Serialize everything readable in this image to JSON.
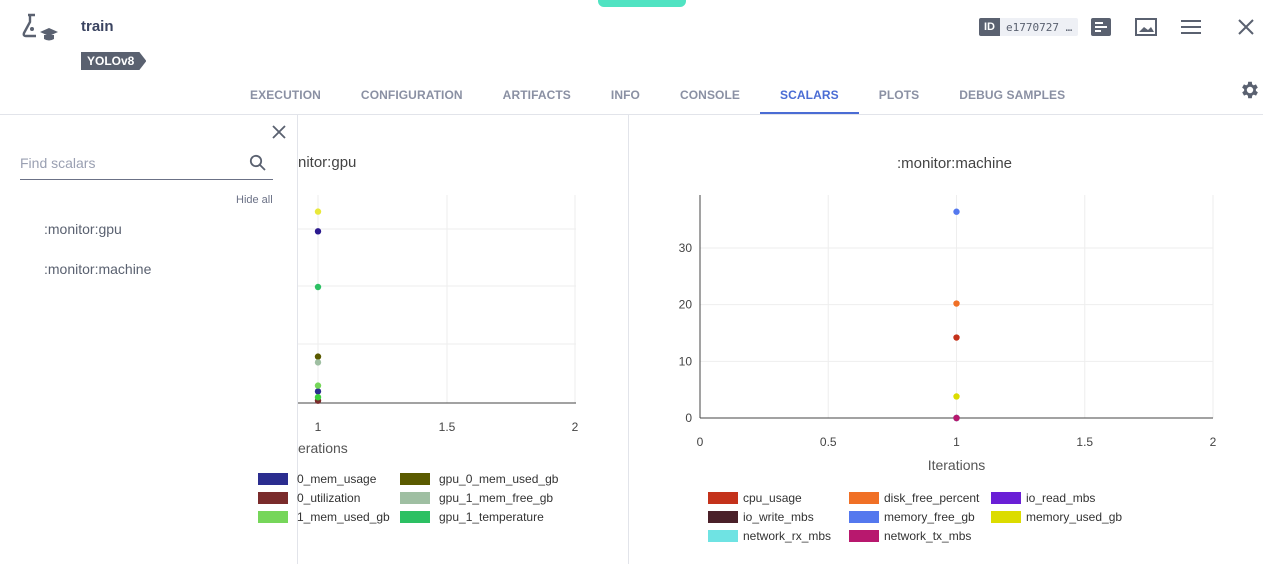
{
  "header": {
    "task_name": "train",
    "tag": "YOLOv8",
    "id_label": "ID",
    "id_value": "e1770727 …",
    "icons": [
      "flask-icon",
      "info-panel-icon",
      "image-view-icon",
      "menu-icon",
      "close-icon"
    ]
  },
  "tabs": [
    {
      "label": "EXECUTION",
      "active": false
    },
    {
      "label": "CONFIGURATION",
      "active": false
    },
    {
      "label": "ARTIFACTS",
      "active": false
    },
    {
      "label": "INFO",
      "active": false
    },
    {
      "label": "CONSOLE",
      "active": false
    },
    {
      "label": "SCALARS",
      "active": true
    },
    {
      "label": "PLOTS",
      "active": false
    },
    {
      "label": "DEBUG SAMPLES",
      "active": false
    }
  ],
  "sidebar": {
    "search_placeholder": "Find scalars",
    "hide_all": "Hide all",
    "items": [
      ":monitor:gpu",
      ":monitor:machine"
    ]
  },
  "colors": {
    "accent": "#4a6cd4",
    "top_accent": "#50e3c2"
  },
  "chart_data": [
    {
      "type": "scatter",
      "title": "nitor:gpu",
      "xlabel": "erations",
      "x_ticks": [
        "1",
        "1.5",
        "2"
      ],
      "grid": true,
      "series": [
        {
          "name": "0_mem_usage",
          "x": [
            1
          ],
          "y": [
            1.0
          ],
          "color": "#2b2d8f"
        },
        {
          "name": "gpu_0_mem_used_gb",
          "x": [
            1
          ],
          "y": [
            4.0
          ],
          "color": "#5a5a00"
        },
        {
          "name": "0_utilization",
          "x": [
            1
          ],
          "y": [
            0.2
          ],
          "color": "#7a2b2b"
        },
        {
          "name": "gpu_1_mem_free_gb",
          "x": [
            1
          ],
          "y": [
            3.5
          ],
          "color": "#9fbfa2"
        },
        {
          "name": "1_mem_used_gb",
          "x": [
            1
          ],
          "y": [
            1.5
          ],
          "color": "#76d65a"
        },
        {
          "name": "gpu_1_temperature",
          "x": [
            1
          ],
          "y": [
            10.0
          ],
          "color": "#2cc063"
        }
      ],
      "extra_points": [
        {
          "y": 16.5,
          "color": "#e8e83a"
        },
        {
          "y": 14.8,
          "color": "#2b1a8f"
        },
        {
          "y": 0.5,
          "color": "#3ccf3c"
        }
      ]
    },
    {
      "type": "scatter",
      "title": ":monitor:machine",
      "xlabel": "Iterations",
      "ylabel": "",
      "xlim": [
        0,
        2
      ],
      "ylim": [
        0,
        39
      ],
      "x_ticks": [
        "0",
        "0.5",
        "1",
        "1.5",
        "2"
      ],
      "y_ticks": [
        "0",
        "10",
        "20",
        "30"
      ],
      "grid": true,
      "series": [
        {
          "name": "cpu_usage",
          "x": [
            1
          ],
          "y": [
            14.2
          ],
          "color": "#c4321b"
        },
        {
          "name": "disk_free_percent",
          "x": [
            1
          ],
          "y": [
            20.2
          ],
          "color": "#f07026"
        },
        {
          "name": "io_read_mbs",
          "x": [
            1
          ],
          "y": [
            0
          ],
          "color": "#6a1fd6"
        },
        {
          "name": "io_write_mbs",
          "x": [
            1
          ],
          "y": [
            0
          ],
          "color": "#4a2029"
        },
        {
          "name": "memory_free_gb",
          "x": [
            1
          ],
          "y": [
            36.4
          ],
          "color": "#5478ee"
        },
        {
          "name": "memory_used_gb",
          "x": [
            1
          ],
          "y": [
            3.8
          ],
          "color": "#dcdc00"
        },
        {
          "name": "network_rx_mbs",
          "x": [
            1
          ],
          "y": [
            0
          ],
          "color": "#6fe3e3"
        },
        {
          "name": "network_tx_mbs",
          "x": [
            1
          ],
          "y": [
            0
          ],
          "color": "#b8186e"
        }
      ]
    }
  ]
}
